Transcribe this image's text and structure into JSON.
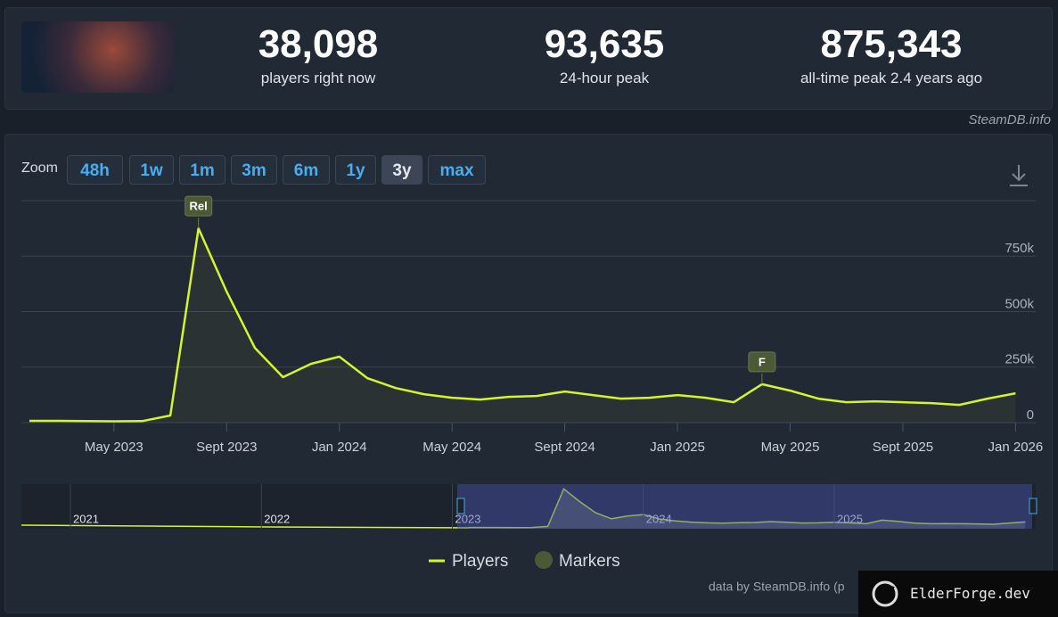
{
  "header": {
    "stats": [
      {
        "value": "38,098",
        "label": "players right now"
      },
      {
        "value": "93,635",
        "label": "24-hour peak"
      },
      {
        "value": "875,343",
        "label": "all-time peak 2.4 years ago"
      }
    ],
    "source": "SteamDB.info"
  },
  "zoom": {
    "label": "Zoom",
    "buttons": [
      "48h",
      "1w",
      "1m",
      "3m",
      "6m",
      "1y",
      "3y",
      "max"
    ],
    "active": "3y"
  },
  "chart_data": {
    "type": "line",
    "x": [
      "2023-02",
      "2023-03",
      "2023-04",
      "2023-05",
      "2023-06",
      "2023-07",
      "2023-08",
      "2023-09",
      "2023-10",
      "2023-11",
      "2023-12",
      "2024-01",
      "2024-02",
      "2024-03",
      "2024-04",
      "2024-05",
      "2024-06",
      "2024-07",
      "2024-08",
      "2024-09",
      "2024-10",
      "2024-11",
      "2024-12",
      "2025-01",
      "2025-02",
      "2025-03",
      "2025-04",
      "2025-05",
      "2025-06",
      "2025-07",
      "2025-08",
      "2025-09",
      "2025-10",
      "2025-11",
      "2025-12",
      "2026-01"
    ],
    "series": [
      {
        "name": "Players",
        "color": "#d2f52c",
        "values": [
          8000,
          8000,
          7000,
          6000,
          7000,
          32000,
          875000,
          590000,
          337000,
          205000,
          265000,
          297000,
          200000,
          156000,
          128000,
          112000,
          104000,
          116000,
          120000,
          140000,
          124000,
          108000,
          112000,
          124000,
          112000,
          92000,
          173000,
          144000,
          108000,
          92000,
          96000,
          92000,
          88000,
          80000,
          108000,
          132000
        ]
      }
    ],
    "markers": {
      "name": "Markers",
      "color": "#4b5a34",
      "items": [
        {
          "x": "2023-08",
          "label": "Rel"
        },
        {
          "x": "2025-04",
          "label": "F"
        }
      ]
    },
    "xlim": [
      "2023-02",
      "2026-02"
    ],
    "xticks": [
      {
        "value": "2023-05",
        "label": "May 2023"
      },
      {
        "value": "2023-09",
        "label": "Sept 2023"
      },
      {
        "value": "2024-01",
        "label": "Jan 2024"
      },
      {
        "value": "2024-05",
        "label": "May 2024"
      },
      {
        "value": "2024-09",
        "label": "Sept 2024"
      },
      {
        "value": "2025-01",
        "label": "Jan 2025"
      },
      {
        "value": "2025-05",
        "label": "May 2025"
      },
      {
        "value": "2025-09",
        "label": "Sept 2025"
      },
      {
        "value": "2026-01",
        "label": "Jan 2026"
      }
    ],
    "ylim": [
      0,
      1000000
    ],
    "yticks": [
      0,
      {
        "value": 250000,
        "label": "250k"
      },
      {
        "value": 500000,
        "label": "500k"
      },
      {
        "value": 750000,
        "label": "750k"
      }
    ],
    "grid": true,
    "navigator": {
      "years": [
        "2021",
        "2022",
        "2023",
        "2024",
        "2025"
      ]
    },
    "credit": "data by SteamDB.info (p"
  },
  "watermark": "ElderForge.dev"
}
